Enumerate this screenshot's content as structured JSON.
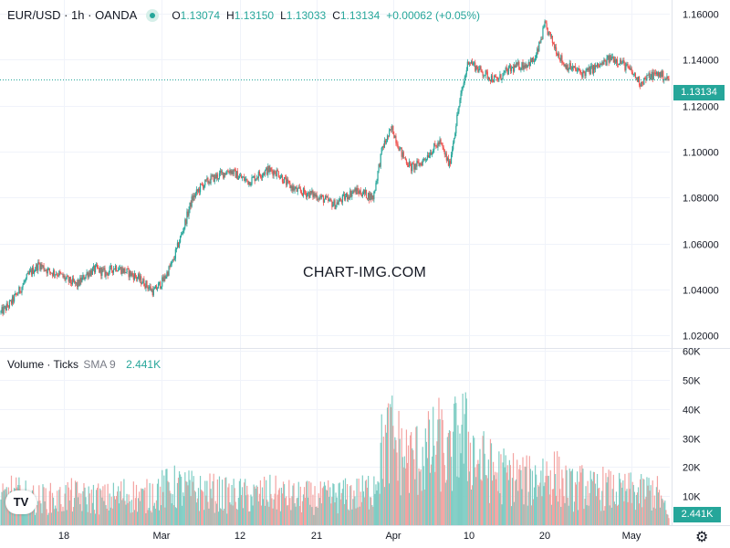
{
  "header": {
    "symbol": "EUR/USD · 1h · OANDA",
    "open_label": "O",
    "open": "1.13074",
    "high_label": "H",
    "high": "1.13150",
    "low_label": "L",
    "low": "1.13033",
    "close_label": "C",
    "close": "1.13134",
    "change": "+0.00062 (+0.05%)"
  },
  "volume_header": {
    "label": "Volume · Ticks",
    "sma_label": "SMA 9",
    "value": "2.441K"
  },
  "watermark": "CHART-IMG.COM",
  "last_price_label": "1.13134",
  "last_volume_label": "2.441K",
  "logo_text": "TV",
  "colors": {
    "up": "#26a69a",
    "down": "#ef5350",
    "grid": "#f0f3fa",
    "text": "#131722"
  },
  "chart_data": [
    {
      "type": "line",
      "title": "",
      "x_tick_labels": [
        "18",
        "Mar",
        "12",
        "21",
        "Apr",
        "10",
        "20",
        "May"
      ],
      "y_tick_labels": [
        "1.16000",
        "1.14000",
        "1.12000",
        "1.10000",
        "1.08000",
        "1.06000",
        "1.04000",
        "1.02000"
      ],
      "ylim": [
        1.015,
        1.166
      ],
      "grid": true,
      "last_value": 1.13134,
      "series": [
        {
          "values": [
            1.03,
            1.034,
            1.04,
            1.047,
            1.051,
            1.048,
            1.047,
            1.044,
            1.042,
            1.047,
            1.049,
            1.047,
            1.05,
            1.048,
            1.046,
            1.043,
            1.039,
            1.044,
            1.052,
            1.065,
            1.079,
            1.085,
            1.088,
            1.09,
            1.092,
            1.089,
            1.087,
            1.09,
            1.092,
            1.091,
            1.086,
            1.083,
            1.082,
            1.081,
            1.079,
            1.077,
            1.08,
            1.083,
            1.082,
            1.08,
            1.102,
            1.11,
            1.099,
            1.093,
            1.095,
            1.1,
            1.104,
            1.094,
            1.12,
            1.14,
            1.136,
            1.133,
            1.131,
            1.135,
            1.137,
            1.138,
            1.14,
            1.155,
            1.146,
            1.138,
            1.136,
            1.134,
            1.136,
            1.138,
            1.141,
            1.139,
            1.135,
            1.13,
            1.133,
            1.134,
            1.131
          ]
        }
      ]
    },
    {
      "type": "bar",
      "title": "",
      "y_tick_labels": [
        "60K",
        "50K",
        "40K",
        "30K",
        "20K",
        "10K"
      ],
      "ylim": [
        0,
        60000
      ],
      "grid": true,
      "series": [
        {
          "values": [
            9000,
            12000,
            11000,
            10000,
            9500,
            10000,
            9000,
            11000,
            10500,
            9800,
            10200,
            9600,
            10400,
            11500,
            10800,
            9900,
            12500,
            13000,
            14000,
            13500,
            12800,
            11900,
            12200,
            11500,
            10800,
            11200,
            10600,
            10900,
            11800,
            11300,
            10700,
            10100,
            10400,
            9800,
            10300,
            10600,
            10900,
            11400,
            11700,
            14000,
            28000,
            32000,
            26000,
            24000,
            25000,
            27000,
            30000,
            23000,
            35000,
            30000,
            24000,
            21000,
            19000,
            18000,
            17500,
            16000,
            17000,
            19000,
            18500,
            15000,
            13000,
            14500,
            12500,
            13800,
            12700,
            11900,
            12400,
            11600,
            12800,
            11200,
            2441
          ]
        }
      ]
    }
  ]
}
